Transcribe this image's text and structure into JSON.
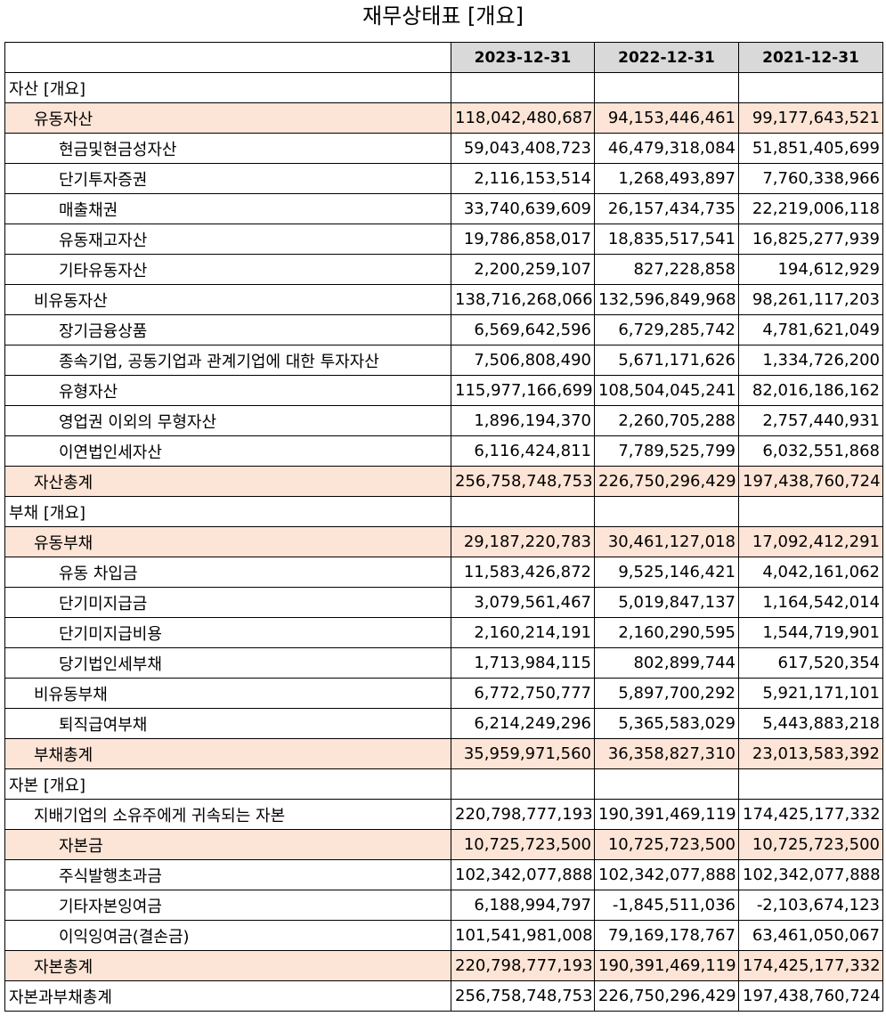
{
  "title": "재무상태표 [개요]",
  "columns": [
    "2023-12-31",
    "2022-12-31",
    "2021-12-31"
  ],
  "rows": [
    {
      "label": "자산 [개요]",
      "level": 0,
      "hl": false,
      "values": [
        "",
        "",
        ""
      ]
    },
    {
      "label": "유동자산",
      "level": 1,
      "hl": true,
      "values": [
        "118,042,480,687",
        "94,153,446,461",
        "99,177,643,521"
      ]
    },
    {
      "label": "현금및현금성자산",
      "level": 2,
      "hl": false,
      "values": [
        "59,043,408,723",
        "46,479,318,084",
        "51,851,405,699"
      ]
    },
    {
      "label": "단기투자증권",
      "level": 2,
      "hl": false,
      "values": [
        "2,116,153,514",
        "1,268,493,897",
        "7,760,338,966"
      ]
    },
    {
      "label": "매출채권",
      "level": 2,
      "hl": false,
      "values": [
        "33,740,639,609",
        "26,157,434,735",
        "22,219,006,118"
      ]
    },
    {
      "label": "유동재고자산",
      "level": 2,
      "hl": false,
      "values": [
        "19,786,858,017",
        "18,835,517,541",
        "16,825,277,939"
      ]
    },
    {
      "label": "기타유동자산",
      "level": 2,
      "hl": false,
      "values": [
        "2,200,259,107",
        "827,228,858",
        "194,612,929"
      ]
    },
    {
      "label": "비유동자산",
      "level": 1,
      "hl": false,
      "values": [
        "138,716,268,066",
        "132,596,849,968",
        "98,261,117,203"
      ]
    },
    {
      "label": "장기금융상품",
      "level": 2,
      "hl": false,
      "values": [
        "6,569,642,596",
        "6,729,285,742",
        "4,781,621,049"
      ]
    },
    {
      "label": "종속기업, 공동기업과 관계기업에 대한 투자자산",
      "level": 2,
      "hl": false,
      "values": [
        "7,506,808,490",
        "5,671,171,626",
        "1,334,726,200"
      ]
    },
    {
      "label": "유형자산",
      "level": 2,
      "hl": false,
      "values": [
        "115,977,166,699",
        "108,504,045,241",
        "82,016,186,162"
      ]
    },
    {
      "label": "영업권 이외의 무형자산",
      "level": 2,
      "hl": false,
      "values": [
        "1,896,194,370",
        "2,260,705,288",
        "2,757,440,931"
      ]
    },
    {
      "label": "이연법인세자산",
      "level": 2,
      "hl": false,
      "values": [
        "6,116,424,811",
        "7,789,525,799",
        "6,032,551,868"
      ]
    },
    {
      "label": "자산총계",
      "level": 1,
      "hl": true,
      "values": [
        "256,758,748,753",
        "226,750,296,429",
        "197,438,760,724"
      ]
    },
    {
      "label": "부채 [개요]",
      "level": 0,
      "hl": false,
      "values": [
        "",
        "",
        ""
      ]
    },
    {
      "label": "유동부채",
      "level": 1,
      "hl": true,
      "values": [
        "29,187,220,783",
        "30,461,127,018",
        "17,092,412,291"
      ]
    },
    {
      "label": "유동 차입금",
      "level": 2,
      "hl": false,
      "values": [
        "11,583,426,872",
        "9,525,146,421",
        "4,042,161,062"
      ]
    },
    {
      "label": "단기미지급금",
      "level": 2,
      "hl": false,
      "values": [
        "3,079,561,467",
        "5,019,847,137",
        "1,164,542,014"
      ]
    },
    {
      "label": "단기미지급비용",
      "level": 2,
      "hl": false,
      "values": [
        "2,160,214,191",
        "2,160,290,595",
        "1,544,719,901"
      ]
    },
    {
      "label": "당기법인세부채",
      "level": 2,
      "hl": false,
      "values": [
        "1,713,984,115",
        "802,899,744",
        "617,520,354"
      ]
    },
    {
      "label": "비유동부채",
      "level": 1,
      "hl": false,
      "values": [
        "6,772,750,777",
        "5,897,700,292",
        "5,921,171,101"
      ]
    },
    {
      "label": "퇴직급여부채",
      "level": 2,
      "hl": false,
      "values": [
        "6,214,249,296",
        "5,365,583,029",
        "5,443,883,218"
      ]
    },
    {
      "label": "부채총계",
      "level": 1,
      "hl": true,
      "values": [
        "35,959,971,560",
        "36,358,827,310",
        "23,013,583,392"
      ]
    },
    {
      "label": "자본 [개요]",
      "level": 0,
      "hl": false,
      "values": [
        "",
        "",
        ""
      ]
    },
    {
      "label": "지배기업의 소유주에게 귀속되는 자본",
      "level": 1,
      "hl": false,
      "values": [
        "220,798,777,193",
        "190,391,469,119",
        "174,425,177,332"
      ]
    },
    {
      "label": "자본금",
      "level": 2,
      "hl": true,
      "values": [
        "10,725,723,500",
        "10,725,723,500",
        "10,725,723,500"
      ]
    },
    {
      "label": "주식발행초과금",
      "level": 2,
      "hl": false,
      "values": [
        "102,342,077,888",
        "102,342,077,888",
        "102,342,077,888"
      ]
    },
    {
      "label": "기타자본잉여금",
      "level": 2,
      "hl": false,
      "values": [
        "6,188,994,797",
        "-1,845,511,036",
        "-2,103,674,123"
      ]
    },
    {
      "label": "이익잉여금(결손금)",
      "level": 2,
      "hl": false,
      "values": [
        "101,541,981,008",
        "79,169,178,767",
        "63,461,050,067"
      ]
    },
    {
      "label": "자본총계",
      "level": 1,
      "hl": true,
      "values": [
        "220,798,777,193",
        "190,391,469,119",
        "174,425,177,332"
      ]
    },
    {
      "label": "자본과부채총계",
      "level": 0,
      "hl": false,
      "values": [
        "256,758,748,753",
        "226,750,296,429",
        "197,438,760,724"
      ]
    }
  ]
}
